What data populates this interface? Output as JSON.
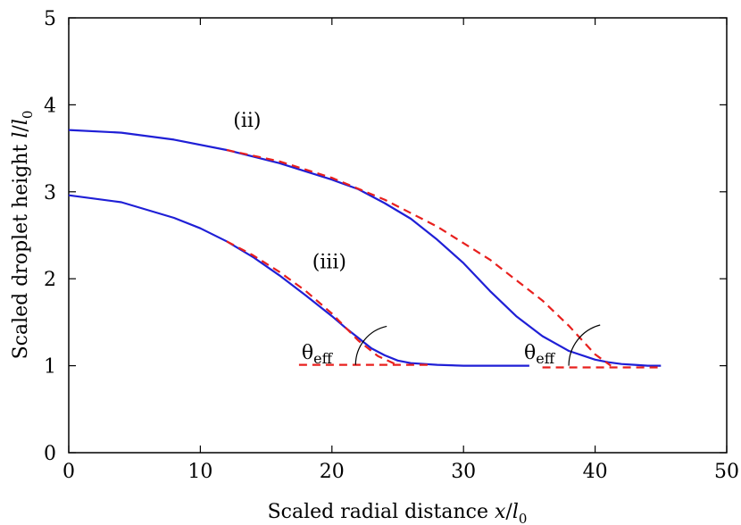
{
  "chart_data": {
    "type": "line",
    "xlabel": {
      "text": "Scaled radial distance  ",
      "var": "x",
      "slash": "/",
      "sym": "l",
      "sub": "0"
    },
    "ylabel": {
      "text": "Scaled droplet height  ",
      "var": "l",
      "slash": "/",
      "sym": "l",
      "sub": "0"
    },
    "xlim": [
      0,
      50
    ],
    "ylim": [
      0,
      5
    ],
    "xticks": [
      0,
      10,
      20,
      30,
      40,
      50
    ],
    "yticks": [
      0,
      1,
      2,
      3,
      4,
      5
    ],
    "grid": false,
    "series": [
      {
        "color": "#1f1fd6",
        "style": "solid",
        "x": [
          0,
          4,
          8,
          12,
          16,
          20,
          22,
          24,
          26,
          28,
          30,
          32,
          34,
          36,
          38,
          40,
          41,
          42,
          43,
          44,
          45
        ],
        "y": [
          3.71,
          3.68,
          3.6,
          3.48,
          3.33,
          3.14,
          3.03,
          2.87,
          2.69,
          2.45,
          2.18,
          1.86,
          1.57,
          1.34,
          1.17,
          1.07,
          1.04,
          1.02,
          1.01,
          1.0,
          1.0
        ]
      },
      {
        "color": "#e8201e",
        "style": "dashed",
        "x": [
          12,
          16,
          20,
          24,
          28,
          32,
          36,
          38,
          40,
          41.2
        ],
        "y": [
          3.48,
          3.35,
          3.16,
          2.91,
          2.6,
          2.22,
          1.75,
          1.46,
          1.13,
          1.0
        ]
      },
      {
        "color": "#e8201e",
        "style": "dashed",
        "x": [
          36,
          45
        ],
        "y": [
          0.98,
          0.98
        ]
      },
      {
        "color": "#1f1fd6",
        "style": "solid",
        "x": [
          0,
          4,
          8,
          10,
          12,
          14,
          16,
          18,
          20,
          21,
          22,
          23,
          24,
          25,
          26,
          28,
          30,
          32,
          35
        ],
        "y": [
          2.96,
          2.88,
          2.7,
          2.58,
          2.43,
          2.25,
          2.04,
          1.81,
          1.57,
          1.44,
          1.32,
          1.2,
          1.12,
          1.06,
          1.03,
          1.01,
          1.0,
          1.0,
          1.0
        ]
      },
      {
        "color": "#e8201e",
        "style": "dashed",
        "x": [
          12,
          14,
          16,
          18,
          20,
          22,
          23.5,
          24.8
        ],
        "y": [
          2.43,
          2.27,
          2.08,
          1.86,
          1.6,
          1.29,
          1.11,
          1.02
        ]
      },
      {
        "color": "#e8201e",
        "style": "dashed",
        "x": [
          17.5,
          27.5
        ],
        "y": [
          1.01,
          1.01
        ]
      }
    ],
    "annotations": [
      {
        "text": "(ii)",
        "x": 12.5,
        "y": 3.75
      },
      {
        "text": "(iii)",
        "x": 18.5,
        "y": 2.12
      }
    ],
    "angle_labels": [
      {
        "theta": "θ",
        "sub": "eff",
        "x": 17.7,
        "y": 1.08,
        "arc": {
          "cx": 24.8,
          "cy": 1.01,
          "r": 3.0,
          "slope": -0.7
        }
      },
      {
        "theta": "θ",
        "sub": "eff",
        "x": 34.6,
        "y": 1.08,
        "arc": {
          "cx": 41.2,
          "cy": 1.0,
          "r": 3.2,
          "slope": -0.57
        }
      }
    ]
  }
}
